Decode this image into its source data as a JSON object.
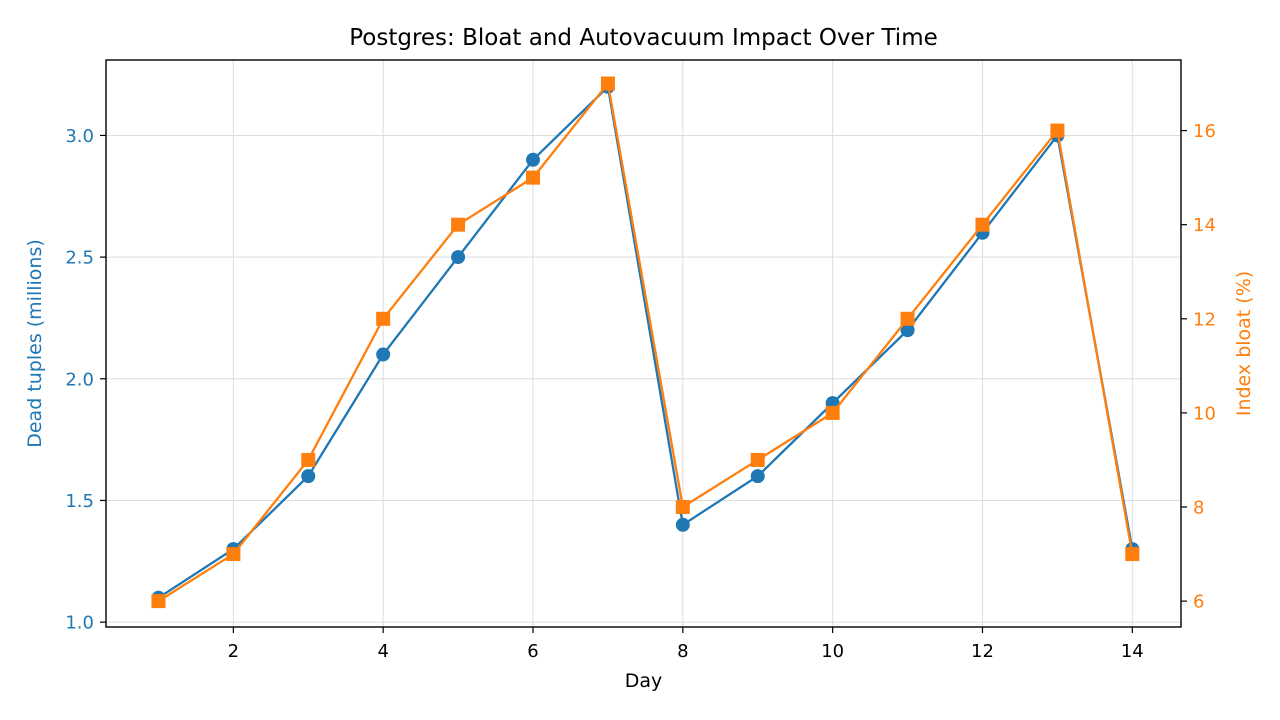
{
  "chart_data": {
    "type": "line",
    "title": "Postgres: Bloat and Autovacuum Impact Over Time",
    "xlabel": "Day",
    "ylabel_left": "Dead tuples (millions)",
    "ylabel_right": "Index bloat (%)",
    "x": [
      1,
      2,
      3,
      4,
      5,
      6,
      7,
      8,
      9,
      10,
      11,
      12,
      13,
      14
    ],
    "xlim": [
      0.3,
      14.65
    ],
    "xticks": [
      2,
      4,
      6,
      8,
      10,
      12,
      14
    ],
    "ylim_left": [
      0.98,
      3.31
    ],
    "yticks_left": [
      "1.0",
      "1.5",
      "2.0",
      "2.5",
      "3.0"
    ],
    "ylim_right": [
      5.45,
      17.5
    ],
    "yticks_right": [
      6,
      8,
      10,
      12,
      14,
      16
    ],
    "grid": true,
    "series": [
      {
        "axis": "left",
        "marker": "circle",
        "color": "#1f77b4",
        "values": [
          1.1,
          1.3,
          1.6,
          2.1,
          2.5,
          2.9,
          3.2,
          1.4,
          1.6,
          1.9,
          2.2,
          2.6,
          3.0,
          1.3
        ]
      },
      {
        "axis": "right",
        "marker": "square",
        "color": "#ff7f0e",
        "values": [
          6,
          7,
          9,
          12,
          14,
          15,
          17,
          8,
          9,
          10,
          12,
          14,
          16,
          7
        ]
      }
    ]
  }
}
